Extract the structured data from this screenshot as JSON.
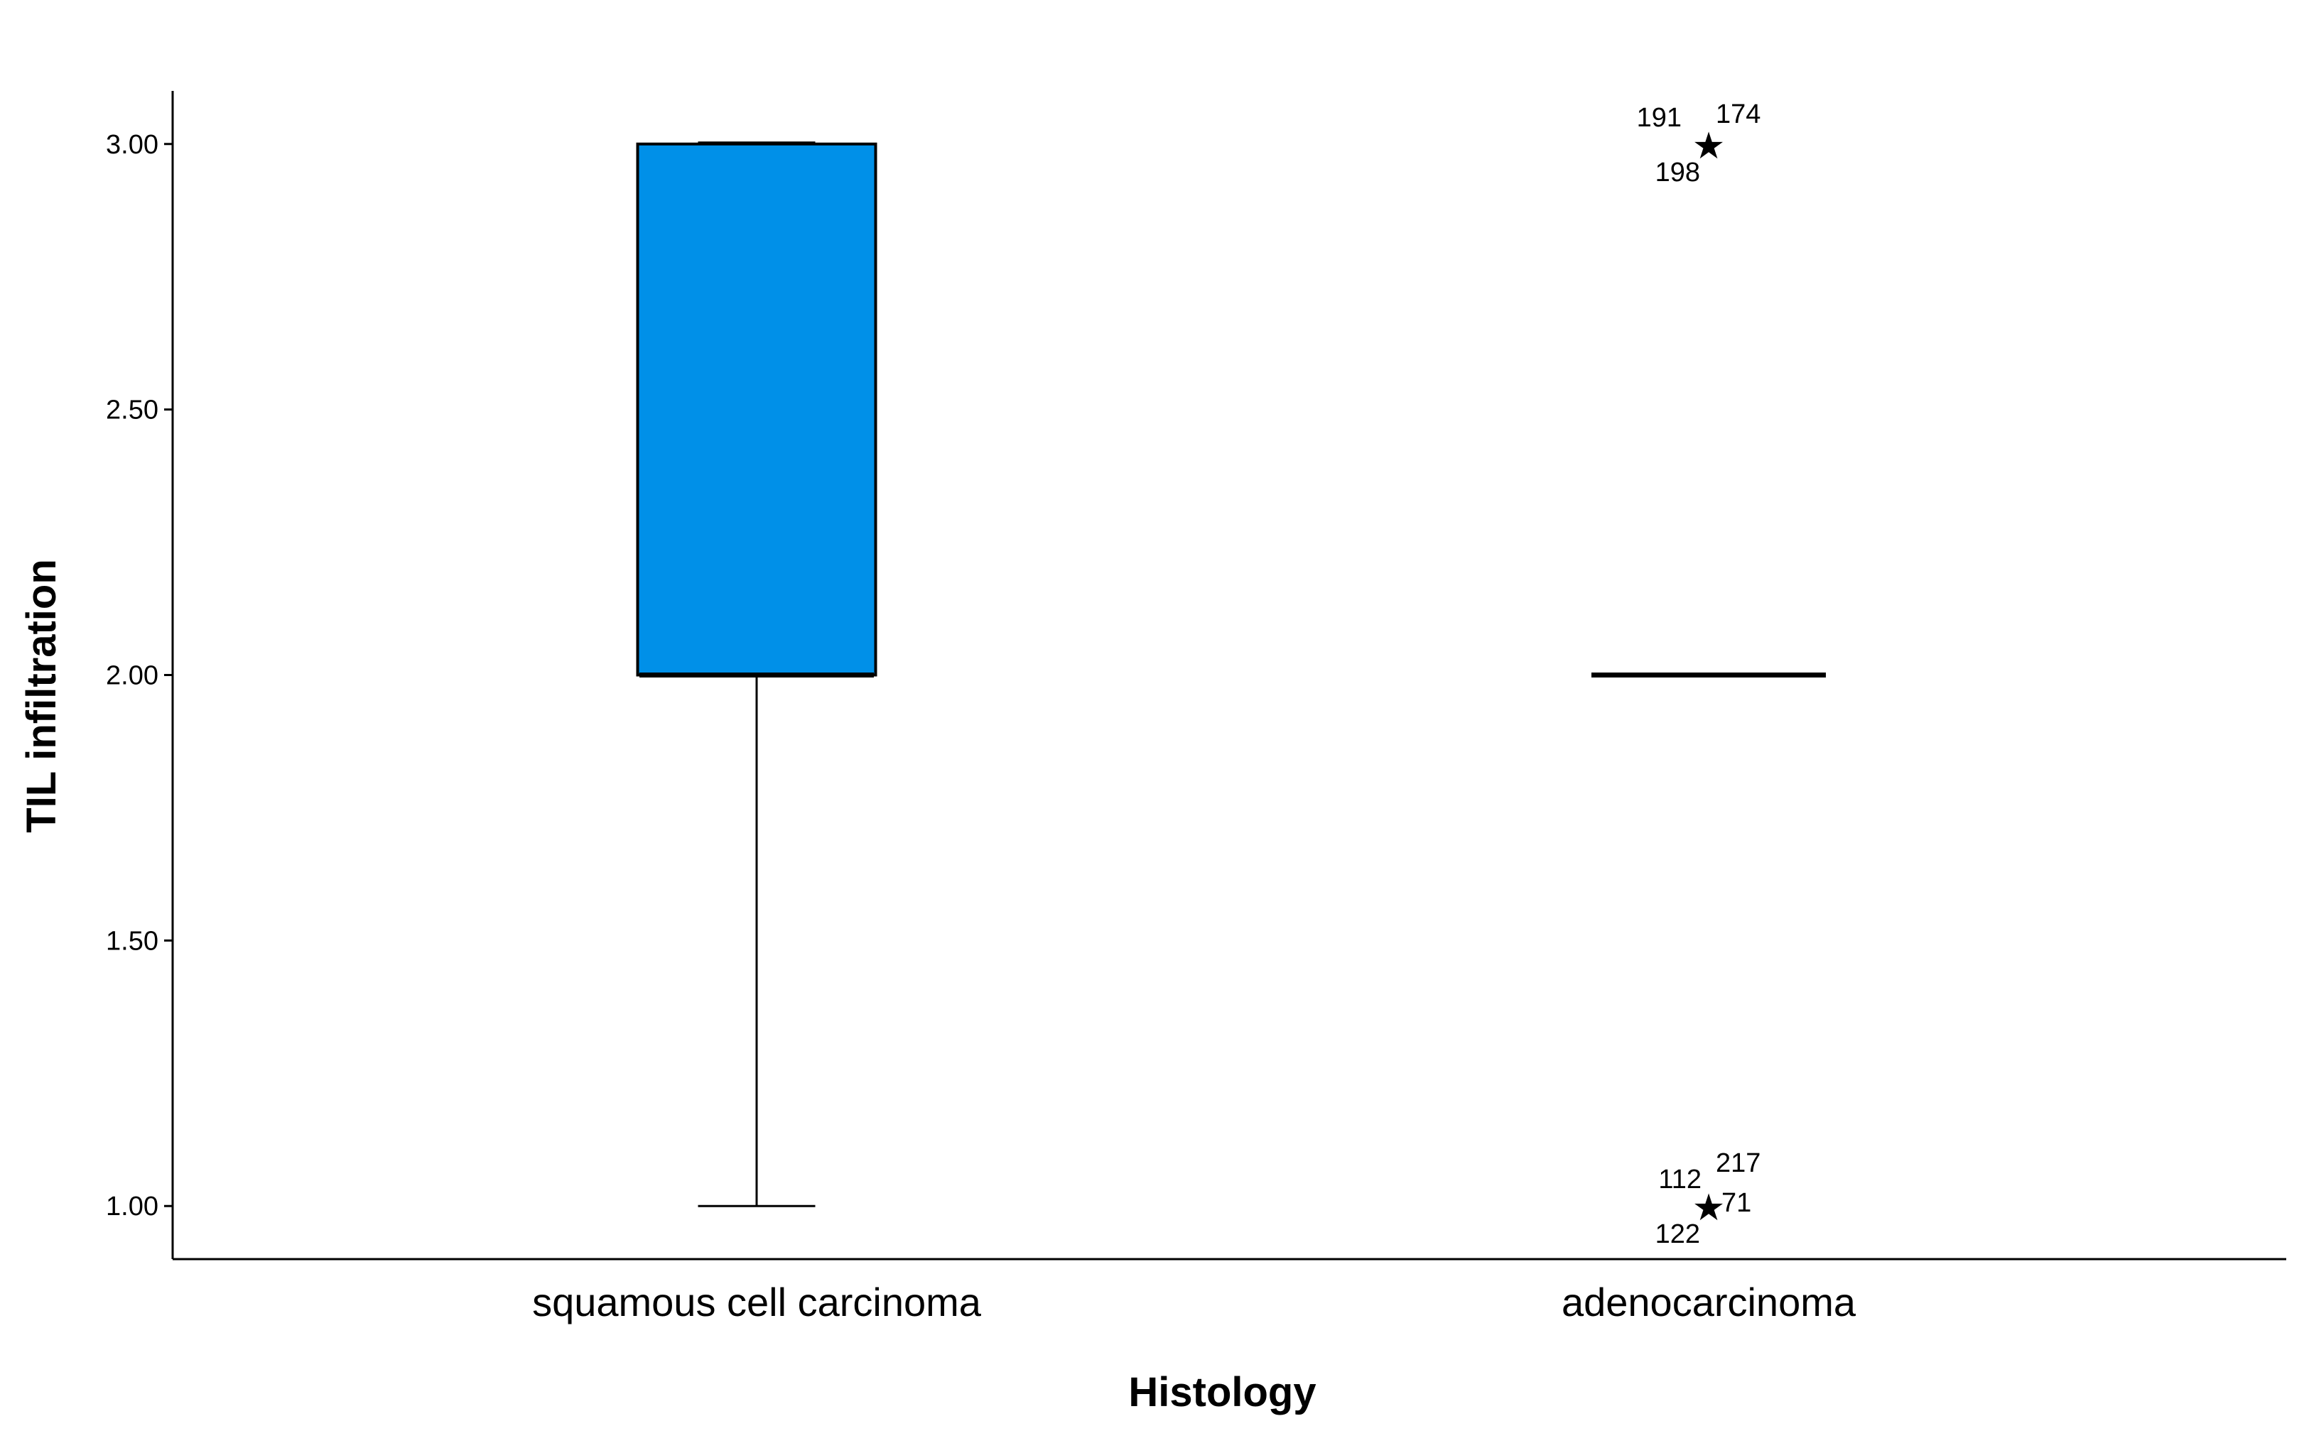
{
  "chart_data": {
    "type": "boxplot",
    "title": "",
    "xlabel": "Histology",
    "ylabel": "TIL infiltration",
    "ylim": [
      0.9,
      3.1
    ],
    "yticks": [
      "1.00",
      "1.50",
      "2.00",
      "2.50",
      "3.00"
    ],
    "ytick_values": [
      1.0,
      1.5,
      2.0,
      2.5,
      3.0
    ],
    "grid": false,
    "box_color": "#0090E8",
    "categories": [
      "squamous cell carcinoma",
      "adenocarcinoma"
    ],
    "boxes": [
      {
        "category": "squamous cell carcinoma",
        "whisker_low": 1.0,
        "q1": 2.0,
        "median": 2.0,
        "q3": 3.0,
        "whisker_high": 3.0,
        "outliers": []
      },
      {
        "category": "adenocarcinoma",
        "whisker_low": 2.0,
        "q1": 2.0,
        "median": 2.0,
        "q3": 2.0,
        "whisker_high": 2.0,
        "outliers": [
          {
            "value": 3.0,
            "marker": "★",
            "labels": [
              "191",
              "174",
              "198"
            ]
          },
          {
            "value": 1.0,
            "marker": "★",
            "labels": [
              "112",
              "217",
              "71",
              "122"
            ]
          }
        ]
      }
    ]
  }
}
